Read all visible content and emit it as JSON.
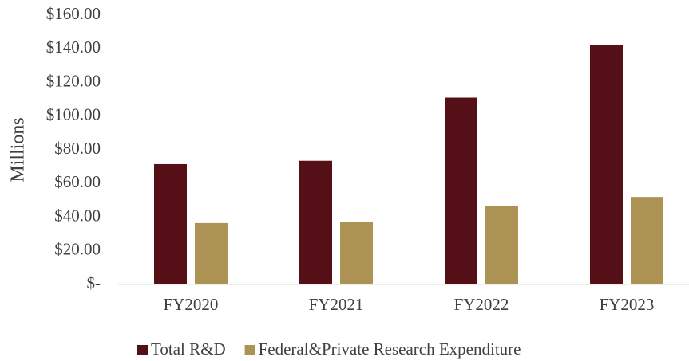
{
  "chart_data": {
    "type": "bar",
    "y_label": "Millions",
    "categories": [
      "FY2020",
      "FY2021",
      "FY2022",
      "FY2023"
    ],
    "series": [
      {
        "name": "Total R&D",
        "color": "#541016",
        "values": [
          71.5,
          73.5,
          111,
          142.5
        ]
      },
      {
        "name": "Federal&Private Research Expenditure",
        "color": "#ad9353",
        "values": [
          36.5,
          37,
          46.5,
          52
        ]
      }
    ],
    "ylim": [
      0,
      160
    ],
    "yticks": [
      {
        "value": 0,
        "label": "$-"
      },
      {
        "value": 20,
        "label": "$20.00"
      },
      {
        "value": 40,
        "label": "$40.00"
      },
      {
        "value": 60,
        "label": "$60.00"
      },
      {
        "value": 80,
        "label": "$80.00"
      },
      {
        "value": 100,
        "label": "$100.00"
      },
      {
        "value": 120,
        "label": "$120.00"
      },
      {
        "value": 140,
        "label": "$140.00"
      },
      {
        "value": 160,
        "label": "$160.00"
      }
    ],
    "grid": false,
    "legend": "bottom"
  }
}
